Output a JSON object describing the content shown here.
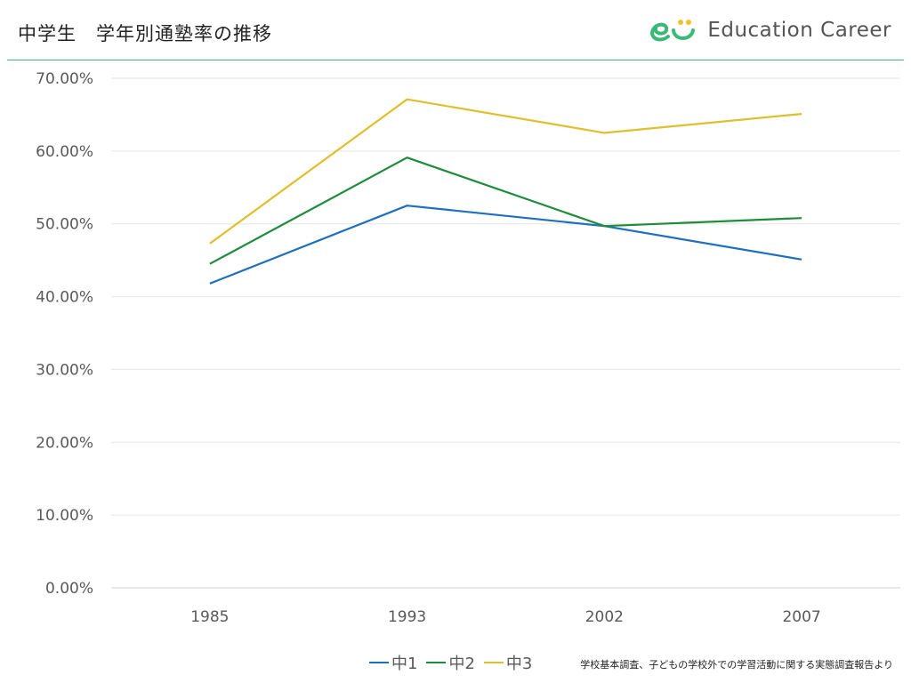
{
  "header": {
    "title": "中学生　学年別通塾率の推移",
    "brand": "Education Career"
  },
  "source_note": "学校基本調査、子どもの学校外での学習活動に関する実態調査報告より",
  "chart_data": {
    "type": "line",
    "title": "中学生　学年別通塾率の推移",
    "xlabel": "",
    "ylabel": "",
    "categories": [
      "1985",
      "1993",
      "2002",
      "2007"
    ],
    "ylim": [
      0,
      0.7
    ],
    "yticks": [
      "0.00%",
      "10.00%",
      "20.00%",
      "30.00%",
      "40.00%",
      "50.00%",
      "60.00%",
      "70.00%"
    ],
    "grid": true,
    "legend_position": "bottom",
    "series": [
      {
        "name": "中1",
        "color": "#1f6fbf",
        "values": [
          0.418,
          0.525,
          0.497,
          0.451
        ]
      },
      {
        "name": "中2",
        "color": "#1e8c3a",
        "values": [
          0.445,
          0.591,
          0.497,
          0.508
        ]
      },
      {
        "name": "中3",
        "color": "#e0bf2c",
        "values": [
          0.473,
          0.671,
          0.625,
          0.651
        ]
      }
    ]
  },
  "colors": {
    "accent_rule": "#3cb878",
    "logo_green": "#3cb878",
    "logo_yellow": "#f2c22d"
  }
}
